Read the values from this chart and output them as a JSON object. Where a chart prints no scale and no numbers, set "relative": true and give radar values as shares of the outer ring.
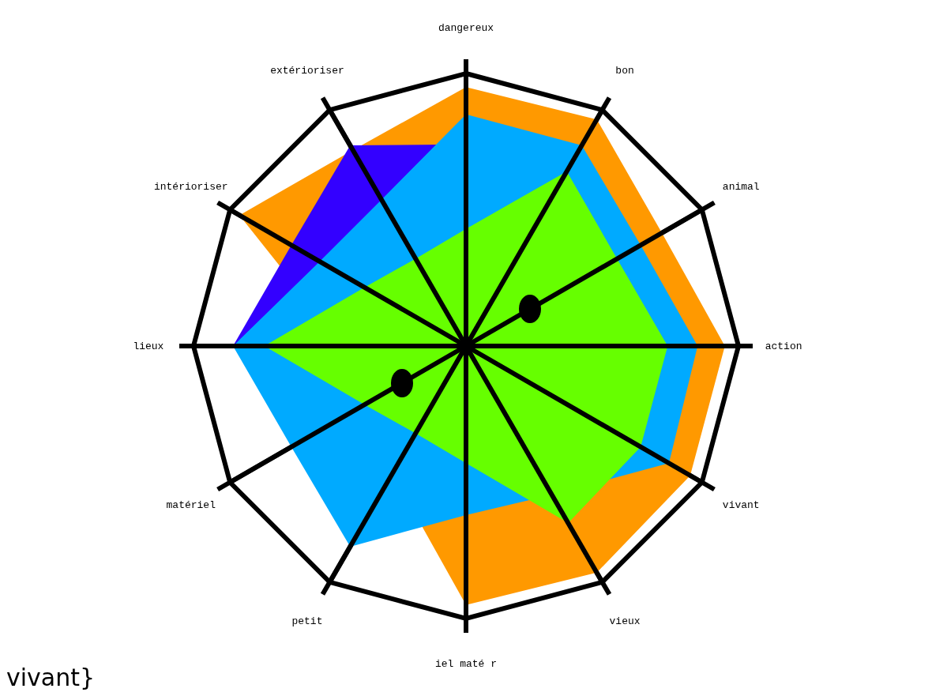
{
  "chart_data": {
    "type": "radar",
    "relative": true,
    "grid": true,
    "legend": false,
    "categories": [
      "dangereux",
      "bon",
      "animal",
      "action",
      "vivant",
      "vieux",
      "iel maté r",
      "petit",
      "matériel",
      "lieux",
      "intérioriser",
      "extérioriser"
    ],
    "series": [
      {
        "color": "#ff9900",
        "values": [
          0.95,
          0.96,
          0.83,
          0.95,
          0.95,
          0.96,
          0.95,
          0.54,
          0.45,
          0.45,
          0.96,
          0.83
        ]
      },
      {
        "color": "#3300ff",
        "values": [
          0.74,
          0.4,
          0.4,
          0.4,
          0.4,
          0.4,
          0.4,
          0.4,
          0.4,
          0.855,
          0.74,
          0.85
        ]
      },
      {
        "color": "#00aaff",
        "values": [
          0.85,
          0.85,
          0.74,
          0.85,
          0.86,
          0.63,
          0.62,
          0.85,
          0.74,
          0.855,
          0.62,
          0.62
        ]
      },
      {
        "color": "#66ff00",
        "values": [
          0.43,
          0.74,
          0.64,
          0.74,
          0.74,
          0.75,
          0.43,
          0.37,
          0.43,
          0.74,
          0.43,
          0.37
        ]
      }
    ],
    "annotations": [
      "vivant}"
    ]
  }
}
